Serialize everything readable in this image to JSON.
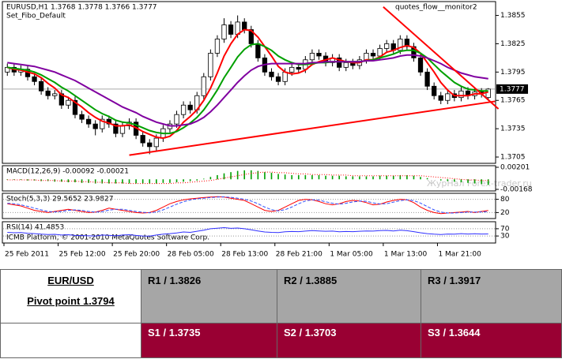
{
  "chart_data": [
    {
      "type": "candlestick",
      "title": "EURUSD,H1  1.3768 1.3778 1.3766 1.3777",
      "subtitle": "Set_Fibo_Default",
      "annotations": [
        "quotes_flow__monitor2"
      ],
      "categories": [
        "25 Feb 2011",
        null,
        null,
        null,
        null,
        null,
        null,
        null,
        "25 Feb 12:00",
        null,
        null,
        null,
        null,
        null,
        null,
        null,
        "25 Feb 20:00",
        null,
        null,
        null,
        null,
        null,
        null,
        null,
        "28 Feb 05:00",
        null,
        null,
        null,
        null,
        null,
        null,
        null,
        "28 Feb 13:00",
        null,
        null,
        null,
        null,
        null,
        null,
        null,
        "28 Feb 21:00",
        null,
        null,
        null,
        null,
        null,
        null,
        null,
        "1 Mar 05:00",
        null,
        null,
        null,
        null,
        null,
        null,
        null,
        "1 Mar 13:00",
        null,
        null,
        null,
        null,
        null,
        null,
        null,
        "1 Mar 21:00",
        null,
        null,
        null,
        null,
        null,
        null,
        null
      ],
      "open": [
        1.3795,
        1.38,
        1.3795,
        1.3798,
        1.379,
        1.3785,
        1.3775,
        1.377,
        1.3772,
        1.376,
        1.3765,
        1.375,
        1.3745,
        1.374,
        1.3735,
        1.3745,
        1.374,
        1.373,
        1.3738,
        1.3742,
        1.3728,
        1.372,
        1.3716,
        1.3725,
        1.3735,
        1.374,
        1.375,
        1.376,
        1.3755,
        1.377,
        1.379,
        1.3815,
        1.383,
        1.3845,
        1.3835,
        1.3848,
        1.384,
        1.3825,
        1.381,
        1.3795,
        1.379,
        1.3785,
        1.3795,
        1.38,
        1.3798,
        1.3808,
        1.3815,
        1.3812,
        1.3805,
        1.381,
        1.38,
        1.3805,
        1.3802,
        1.3808,
        1.3815,
        1.3812,
        1.382,
        1.3825,
        1.3818,
        1.383,
        1.3822,
        1.381,
        1.3795,
        1.378,
        1.377,
        1.3765,
        1.3772,
        1.3768,
        1.3775,
        1.377,
        1.3774,
        1.3768
      ],
      "high": [
        1.3804,
        1.3804,
        1.3802,
        1.3802,
        1.3794,
        1.3789,
        1.3779,
        1.3776,
        1.3776,
        1.3769,
        1.3769,
        1.3754,
        1.3749,
        1.3744,
        1.3749,
        1.3749,
        1.3744,
        1.3742,
        1.3746,
        1.3746,
        1.3732,
        1.3724,
        1.3729,
        1.3739,
        1.3744,
        1.3754,
        1.3764,
        1.3764,
        1.3774,
        1.3794,
        1.3819,
        1.3834,
        1.3852,
        1.3849,
        1.3855,
        1.3852,
        1.3844,
        1.3829,
        1.3814,
        1.3799,
        1.3794,
        1.3799,
        1.3804,
        1.3804,
        1.3812,
        1.3819,
        1.3819,
        1.3816,
        1.3814,
        1.3814,
        1.3809,
        1.3809,
        1.3812,
        1.3819,
        1.3819,
        1.3824,
        1.3829,
        1.3829,
        1.3834,
        1.3834,
        1.3826,
        1.3814,
        1.3799,
        1.3784,
        1.3774,
        1.3776,
        1.3776,
        1.3779,
        1.3779,
        1.3778,
        1.3778,
        1.3778
      ],
      "low": [
        1.3791,
        1.3791,
        1.3791,
        1.3786,
        1.3781,
        1.3771,
        1.3766,
        1.3766,
        1.3756,
        1.3756,
        1.3746,
        1.3741,
        1.3736,
        1.3728,
        1.3731,
        1.3736,
        1.3726,
        1.3726,
        1.3734,
        1.3724,
        1.3716,
        1.3708,
        1.3712,
        1.3721,
        1.3731,
        1.3736,
        1.3746,
        1.3751,
        1.3751,
        1.3766,
        1.3786,
        1.3811,
        1.3826,
        1.3831,
        1.3831,
        1.3836,
        1.3821,
        1.3806,
        1.3791,
        1.3786,
        1.3781,
        1.3781,
        1.3791,
        1.3794,
        1.3794,
        1.3804,
        1.3808,
        1.3801,
        1.3801,
        1.3796,
        1.3796,
        1.3798,
        1.3798,
        1.3804,
        1.3808,
        1.3808,
        1.3816,
        1.3814,
        1.3814,
        1.3818,
        1.3806,
        1.3791,
        1.3776,
        1.3766,
        1.3761,
        1.3761,
        1.3764,
        1.3764,
        1.3766,
        1.3766,
        1.3768,
        1.3766
      ],
      "close": [
        1.38,
        1.3795,
        1.3798,
        1.379,
        1.3785,
        1.3775,
        1.377,
        1.3772,
        1.376,
        1.3765,
        1.375,
        1.3745,
        1.374,
        1.3735,
        1.3745,
        1.374,
        1.373,
        1.3738,
        1.3742,
        1.3728,
        1.372,
        1.3716,
        1.3725,
        1.3735,
        1.374,
        1.375,
        1.376,
        1.3755,
        1.377,
        1.379,
        1.3815,
        1.383,
        1.3845,
        1.3835,
        1.3848,
        1.384,
        1.3825,
        1.381,
        1.3795,
        1.379,
        1.3785,
        1.3795,
        1.38,
        1.3798,
        1.3808,
        1.3815,
        1.3812,
        1.3805,
        1.381,
        1.38,
        1.3805,
        1.3802,
        1.3808,
        1.3815,
        1.3812,
        1.382,
        1.3825,
        1.3818,
        1.383,
        1.3822,
        1.381,
        1.3795,
        1.378,
        1.377,
        1.3765,
        1.3772,
        1.3768,
        1.3775,
        1.377,
        1.3774,
        1.3772,
        1.3777
      ],
      "series": [
        {
          "color": "#ff0000",
          "values": [
            1.38,
            1.3798,
            1.3797,
            1.3795,
            1.3793,
            1.3789,
            1.3783,
            1.3778,
            1.3771,
            1.3768,
            1.3763,
            1.3758,
            1.3752,
            1.3747,
            1.3743,
            1.3741,
            1.3738,
            1.3738,
            1.3739,
            1.3736,
            1.3732,
            1.3729,
            1.3726,
            1.3725,
            1.3727,
            1.3733,
            1.3742,
            1.3748,
            1.3755,
            1.3765,
            1.3778,
            1.3794,
            1.3812,
            1.3825,
            1.3835,
            1.384,
            1.3839,
            1.3832,
            1.3822,
            1.3812,
            1.3801,
            1.3795,
            1.3793,
            1.3794,
            1.3797,
            1.3803,
            1.3806,
            1.3808,
            1.381,
            1.3808,
            1.3806,
            1.3805,
            1.3805,
            1.3808,
            1.3808,
            1.3811,
            1.3816,
            1.3818,
            1.3821,
            1.3823,
            1.3821,
            1.3815,
            1.3805,
            1.3795,
            1.3784,
            1.3776,
            1.377,
            1.377,
            1.377,
            1.3772,
            1.3772,
            1.3774
          ]
        },
        {
          "color": "#00a000",
          "values": [
            1.38,
            1.3799,
            1.3798,
            1.3797,
            1.3795,
            1.3792,
            1.3788,
            1.3784,
            1.3779,
            1.3775,
            1.377,
            1.3765,
            1.376,
            1.3755,
            1.3751,
            1.3748,
            1.3744,
            1.3742,
            1.3741,
            1.3739,
            1.3736,
            1.3733,
            1.3731,
            1.373,
            1.373,
            1.3732,
            1.3736,
            1.3741,
            1.3747,
            1.3755,
            1.3765,
            1.3776,
            1.3789,
            1.38,
            1.3811,
            1.3819,
            1.3824,
            1.3825,
            1.3822,
            1.3818,
            1.3812,
            1.3808,
            1.3805,
            1.3803,
            1.3803,
            1.3804,
            1.3805,
            1.3805,
            1.3806,
            1.3806,
            1.3806,
            1.3806,
            1.3806,
            1.3807,
            1.3808,
            1.381,
            1.3812,
            1.3814,
            1.3817,
            1.3818,
            1.3818,
            1.3815,
            1.381,
            1.3803,
            1.3796,
            1.379,
            1.3784,
            1.378,
            1.3777,
            1.3776,
            1.3775,
            1.3775
          ]
        },
        {
          "color": "#8000a0",
          "values": [
            1.3805,
            1.3804,
            1.3803,
            1.3802,
            1.3801,
            1.3799,
            1.3797,
            1.3795,
            1.3792,
            1.3789,
            1.3786,
            1.3782,
            1.3778,
            1.3774,
            1.377,
            1.3766,
            1.3762,
            1.3758,
            1.3755,
            1.3752,
            1.3748,
            1.3745,
            1.3742,
            1.374,
            1.3738,
            1.3738,
            1.3739,
            1.374,
            1.3743,
            1.3747,
            1.3753,
            1.376,
            1.3768,
            1.3776,
            1.3784,
            1.3791,
            1.3797,
            1.3801,
            1.3803,
            1.3804,
            1.3804,
            1.3804,
            1.3804,
            1.3804,
            1.3804,
            1.3805,
            1.3805,
            1.3806,
            1.3806,
            1.3806,
            1.3806,
            1.3806,
            1.3806,
            1.3807,
            1.3807,
            1.3808,
            1.3809,
            1.381,
            1.3812,
            1.3813,
            1.3813,
            1.3812,
            1.381,
            1.3807,
            1.3804,
            1.38,
            1.3797,
            1.3794,
            1.3792,
            1.379,
            1.3789,
            1.3788
          ]
        }
      ],
      "trendlines": [
        {
          "color": "#ff0000",
          "from": [
            18,
            1.3707
          ],
          "to": [
            72,
            1.3764
          ]
        },
        {
          "color": "#ff0000",
          "from": [
            55.5,
            1.3864
          ],
          "to": [
            72.5,
            1.3756
          ]
        }
      ],
      "current_price": 1.3777,
      "ylim": [
        1.37,
        1.3868
      ],
      "yticks": [
        1.3855,
        1.3825,
        1.3795,
        1.3765,
        1.3735,
        1.3705
      ]
    },
    {
      "type": "macd",
      "title": "MACD(12,26,9) -0.00092 -0.00021",
      "watermark": "ЖурНал Forex-trader.ru",
      "series": [
        {
          "color": "#00a000",
          "style": "bar",
          "values": [
            -0.0001,
            -0.0001,
            -0.0001,
            -0.0002,
            -0.0002,
            -0.0003,
            -0.0003,
            -0.0004,
            -0.0004,
            -0.0005,
            -0.0005,
            -0.0006,
            -0.0006,
            -0.0007,
            -0.0007,
            -0.0007,
            -0.0007,
            -0.0007,
            -0.0007,
            -0.0007,
            -0.0007,
            -0.0007,
            -0.0007,
            -0.0006,
            -0.0006,
            -0.0005,
            -0.0004,
            -0.0003,
            -0.0002,
            0.0001,
            0.0004,
            0.0007,
            0.001,
            0.0012,
            0.0014,
            0.0015,
            0.0015,
            0.0014,
            0.0012,
            0.0011,
            0.0009,
            0.0008,
            0.0007,
            0.0007,
            0.0007,
            0.0007,
            0.0007,
            0.0006,
            0.0006,
            0.0006,
            0.0005,
            0.0005,
            0.0005,
            0.0005,
            0.0005,
            0.0006,
            0.0006,
            0.0006,
            0.0007,
            0.0007,
            0.0006,
            0.0004,
            0.0002,
            0.0,
            -0.0002,
            -0.0003,
            -0.0004,
            -0.0005,
            -0.0006,
            -0.0007,
            -0.0008,
            -0.00092
          ]
        },
        {
          "color": "#ff0000",
          "style": "dotted",
          "values": [
            -0.0001,
            -0.0001,
            -0.0001,
            -0.0001,
            -0.0001,
            -0.0002,
            -0.0002,
            -0.0002,
            -0.0003,
            -0.0003,
            -0.0003,
            -0.0004,
            -0.0004,
            -0.0005,
            -0.0005,
            -0.0006,
            -0.0006,
            -0.0006,
            -0.0007,
            -0.0007,
            -0.0007,
            -0.0007,
            -0.0007,
            -0.0007,
            -0.0007,
            -0.0006,
            -0.0006,
            -0.0005,
            -0.0004,
            -0.0003,
            -0.0002,
            0.0,
            0.0002,
            0.0004,
            0.0006,
            0.0008,
            0.001,
            0.0011,
            0.0012,
            0.0012,
            0.0011,
            0.0011,
            0.001,
            0.0009,
            0.0009,
            0.0008,
            0.0008,
            0.0008,
            0.0007,
            0.0007,
            0.0007,
            0.0006,
            0.0006,
            0.0006,
            0.0006,
            0.0006,
            0.0006,
            0.0006,
            0.0006,
            0.0006,
            0.0006,
            0.0006,
            0.0005,
            0.0004,
            0.0003,
            0.0002,
            0.0001,
            0.0,
            -0.0001,
            -0.0001,
            -0.0002,
            -0.00021
          ]
        }
      ],
      "ylim": [
        -0.00168,
        0.00201
      ],
      "yticks": [
        0.00201,
        -0.00168
      ]
    },
    {
      "type": "line",
      "title": "Stoch(5,3,3) 29.5652 23.9827",
      "series": [
        {
          "color": "#ff0000",
          "values": [
            60,
            55,
            50,
            40,
            30,
            25,
            20,
            25,
            30,
            35,
            30,
            25,
            20,
            22,
            30,
            40,
            35,
            30,
            25,
            20,
            18,
            20,
            30,
            45,
            60,
            70,
            78,
            82,
            85,
            88,
            90,
            92,
            90,
            85,
            80,
            75,
            60,
            45,
            30,
            25,
            30,
            45,
            60,
            75,
            80,
            78,
            70,
            60,
            55,
            60,
            70,
            75,
            72,
            65,
            55,
            58,
            68,
            75,
            80,
            78,
            65,
            45,
            30,
            20,
            15,
            18,
            20,
            22,
            25,
            20,
            25,
            29.5652
          ]
        },
        {
          "color": "#3050ff",
          "style": "dashed",
          "values": [
            62,
            60,
            55,
            48,
            40,
            32,
            25,
            23,
            25,
            30,
            32,
            30,
            25,
            22,
            24,
            31,
            35,
            35,
            30,
            25,
            21,
            19,
            23,
            32,
            45,
            58,
            69,
            77,
            82,
            85,
            88,
            90,
            91,
            89,
            85,
            80,
            72,
            60,
            45,
            33,
            28,
            33,
            45,
            60,
            72,
            78,
            76,
            69,
            62,
            58,
            62,
            68,
            72,
            71,
            64,
            59,
            60,
            67,
            74,
            78,
            74,
            63,
            47,
            32,
            22,
            18,
            18,
            20,
            22,
            22,
            23,
            23.9827
          ]
        }
      ],
      "grid": true,
      "ylim": [
        0,
        100
      ],
      "yticks": [
        80,
        20
      ]
    },
    {
      "type": "line",
      "title": "RSI(14) 41.4853",
      "annotations": [
        "ICMB Platform, © 2001-2010 MetaQuotes Software Corp."
      ],
      "series": [
        {
          "color": "#3030ff",
          "values": [
            50,
            48,
            49,
            45,
            43,
            40,
            38,
            39,
            35,
            37,
            33,
            32,
            31,
            30,
            35,
            34,
            31,
            35,
            37,
            33,
            30,
            29,
            35,
            40,
            43,
            47,
            52,
            50,
            56,
            62,
            70,
            73,
            76,
            72,
            74,
            70,
            64,
            58,
            52,
            50,
            49,
            53,
            55,
            54,
            57,
            60,
            58,
            56,
            57,
            53,
            55,
            54,
            56,
            58,
            57,
            60,
            61,
            58,
            62,
            59,
            54,
            48,
            43,
            40,
            38,
            41,
            40,
            43,
            41,
            42,
            41,
            41.4853
          ]
        }
      ],
      "grid": true,
      "ylim": [
        0,
        100
      ],
      "yticks": [
        70,
        30
      ]
    }
  ],
  "table": {
    "pair": "EUR/USD",
    "pivot": "Pivot point 1.3794",
    "rows": [
      [
        "R1 / 1.3826",
        "R2 / 1.3885",
        "R3 / 1.3917"
      ],
      [
        "S1 / 1.3735",
        "S2 / 1.3703",
        "S3 / 1.3644"
      ]
    ]
  }
}
